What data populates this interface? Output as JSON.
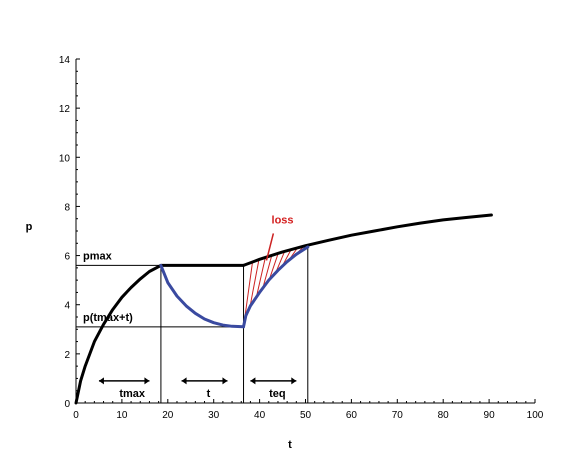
{
  "chart_data": {
    "type": "line",
    "xlabel": "t",
    "ylabel": "p",
    "xlim": [
      0,
      100
    ],
    "ylim": [
      0,
      14
    ],
    "x_ticks": [
      0,
      10,
      20,
      30,
      40,
      50,
      60,
      70,
      80,
      90,
      100
    ],
    "y_ticks": [
      0,
      2,
      4,
      6,
      8,
      10,
      12,
      14
    ],
    "grid": false,
    "colors": {
      "black_curve": "#000000",
      "blue_curve": "#3a4aa0",
      "loss_hatch": "#cc2222",
      "loss_text": "#d42020"
    },
    "series": [
      {
        "color": "#000000",
        "x": [
          0,
          1,
          2,
          4,
          6,
          8,
          10,
          12,
          14,
          16,
          18.5
        ],
        "y": [
          0,
          0.9,
          1.5,
          2.5,
          3.2,
          3.8,
          4.3,
          4.7,
          5.05,
          5.35,
          5.6
        ]
      },
      {
        "color": "#000000",
        "x": [
          18.5,
          36.5
        ],
        "y": [
          5.6,
          5.6
        ]
      },
      {
        "color": "#000000",
        "x": [
          36.5,
          40,
          45,
          50,
          55,
          60,
          65,
          70,
          75,
          80,
          85,
          90.5
        ],
        "y": [
          5.6,
          5.85,
          6.15,
          6.4,
          6.62,
          6.83,
          7.0,
          7.17,
          7.32,
          7.45,
          7.55,
          7.65
        ]
      },
      {
        "color": "#3a4aa0",
        "x": [
          18.5,
          20,
          22,
          24,
          26,
          28,
          30,
          32,
          34,
          36.5
        ],
        "y": [
          5.6,
          4.9,
          4.35,
          3.95,
          3.65,
          3.42,
          3.27,
          3.17,
          3.12,
          3.1
        ]
      },
      {
        "color": "#3a4aa0",
        "x": [
          36.5,
          37,
          38,
          40,
          42,
          44,
          46,
          48,
          50.5
        ],
        "y": [
          3.1,
          3.55,
          3.95,
          4.5,
          5.0,
          5.4,
          5.75,
          6.05,
          6.35
        ]
      }
    ],
    "reference_lines": {
      "horizontal": [
        {
          "label": "pmax",
          "y": 5.6,
          "x_from": 0,
          "x_to": 36.5
        },
        {
          "label": "p(tmax+t)",
          "y": 3.1,
          "x_from": 0,
          "x_to": 36.5
        }
      ],
      "vertical": [
        {
          "x": 18.5,
          "y_from": 0,
          "y_to": 5.6
        },
        {
          "x": 36.5,
          "y_from": 0,
          "y_to": 5.6
        },
        {
          "x": 50.5,
          "y_from": 0,
          "y_to": 6.4
        }
      ]
    },
    "annotations": [
      {
        "text": "tmax",
        "x_from": 5,
        "x_to": 16,
        "y": 0.9,
        "arrow": "double"
      },
      {
        "text": "t",
        "x_from": 23,
        "x_to": 33,
        "y": 0.9,
        "arrow": "double"
      },
      {
        "text": "teq",
        "x_from": 38,
        "x_to": 48,
        "y": 0.9,
        "arrow": "double"
      }
    ],
    "loss_label": {
      "text": "loss",
      "x": 45,
      "y": 7.3
    },
    "loss_pointer": {
      "x_from": 43,
      "y_from": 6.9,
      "x_to": 41.5,
      "y_to": 5.8
    },
    "hatch_region": {
      "x_from": 36.5,
      "x_to": 50.5,
      "count": 10
    }
  }
}
